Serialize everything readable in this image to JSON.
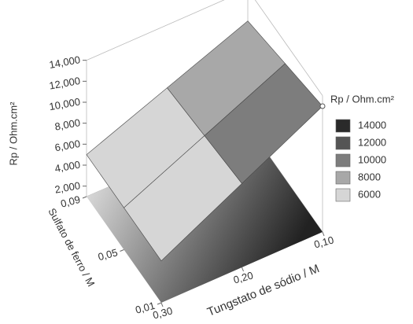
{
  "chart_data": {
    "type": "surface3d",
    "zlabel": "Rp / Ohm.cm²",
    "xlabel": "Tungstato de sódio / M",
    "ylabel": "Sulfato de ferro / M",
    "x": [
      0.1,
      0.2,
      0.3
    ],
    "y": [
      0.01,
      0.05,
      0.09
    ],
    "z": [
      [
        13000,
        9000,
        5000
      ],
      [
        12000,
        8500,
        5000
      ],
      [
        11000,
        8000,
        5000
      ]
    ],
    "xlim": [
      0.3,
      0.1
    ],
    "xticks": [
      {
        "value": 0.1,
        "label": "0,10"
      },
      {
        "value": 0.2,
        "label": "0,20"
      },
      {
        "value": 0.3,
        "label": "0,30"
      }
    ],
    "ylim": [
      0.01,
      0.09
    ],
    "yticks": [
      {
        "value": 0.01,
        "label": "0,01"
      },
      {
        "value": 0.05,
        "label": "0,05"
      },
      {
        "value": 0.09,
        "label": "0,09"
      }
    ],
    "zlim": [
      1000,
      14000
    ],
    "zticks": [
      {
        "value": 2000,
        "label": "2,000"
      },
      {
        "value": 4000,
        "label": "4,000"
      },
      {
        "value": 6000,
        "label": "6,000"
      },
      {
        "value": 8000,
        "label": "8,000"
      },
      {
        "value": 10000,
        "label": "10,000"
      },
      {
        "value": 12000,
        "label": "12,000"
      },
      {
        "value": 14000,
        "label": "14,000"
      }
    ],
    "legend": {
      "title": "Rp / Ohm.cm²",
      "levels": [
        14000,
        12000,
        10000,
        8000,
        6000
      ],
      "colors": [
        "#2a2a2a",
        "#555555",
        "#7d7d7d",
        "#a8a8a8",
        "#d6d6d6"
      ]
    }
  }
}
